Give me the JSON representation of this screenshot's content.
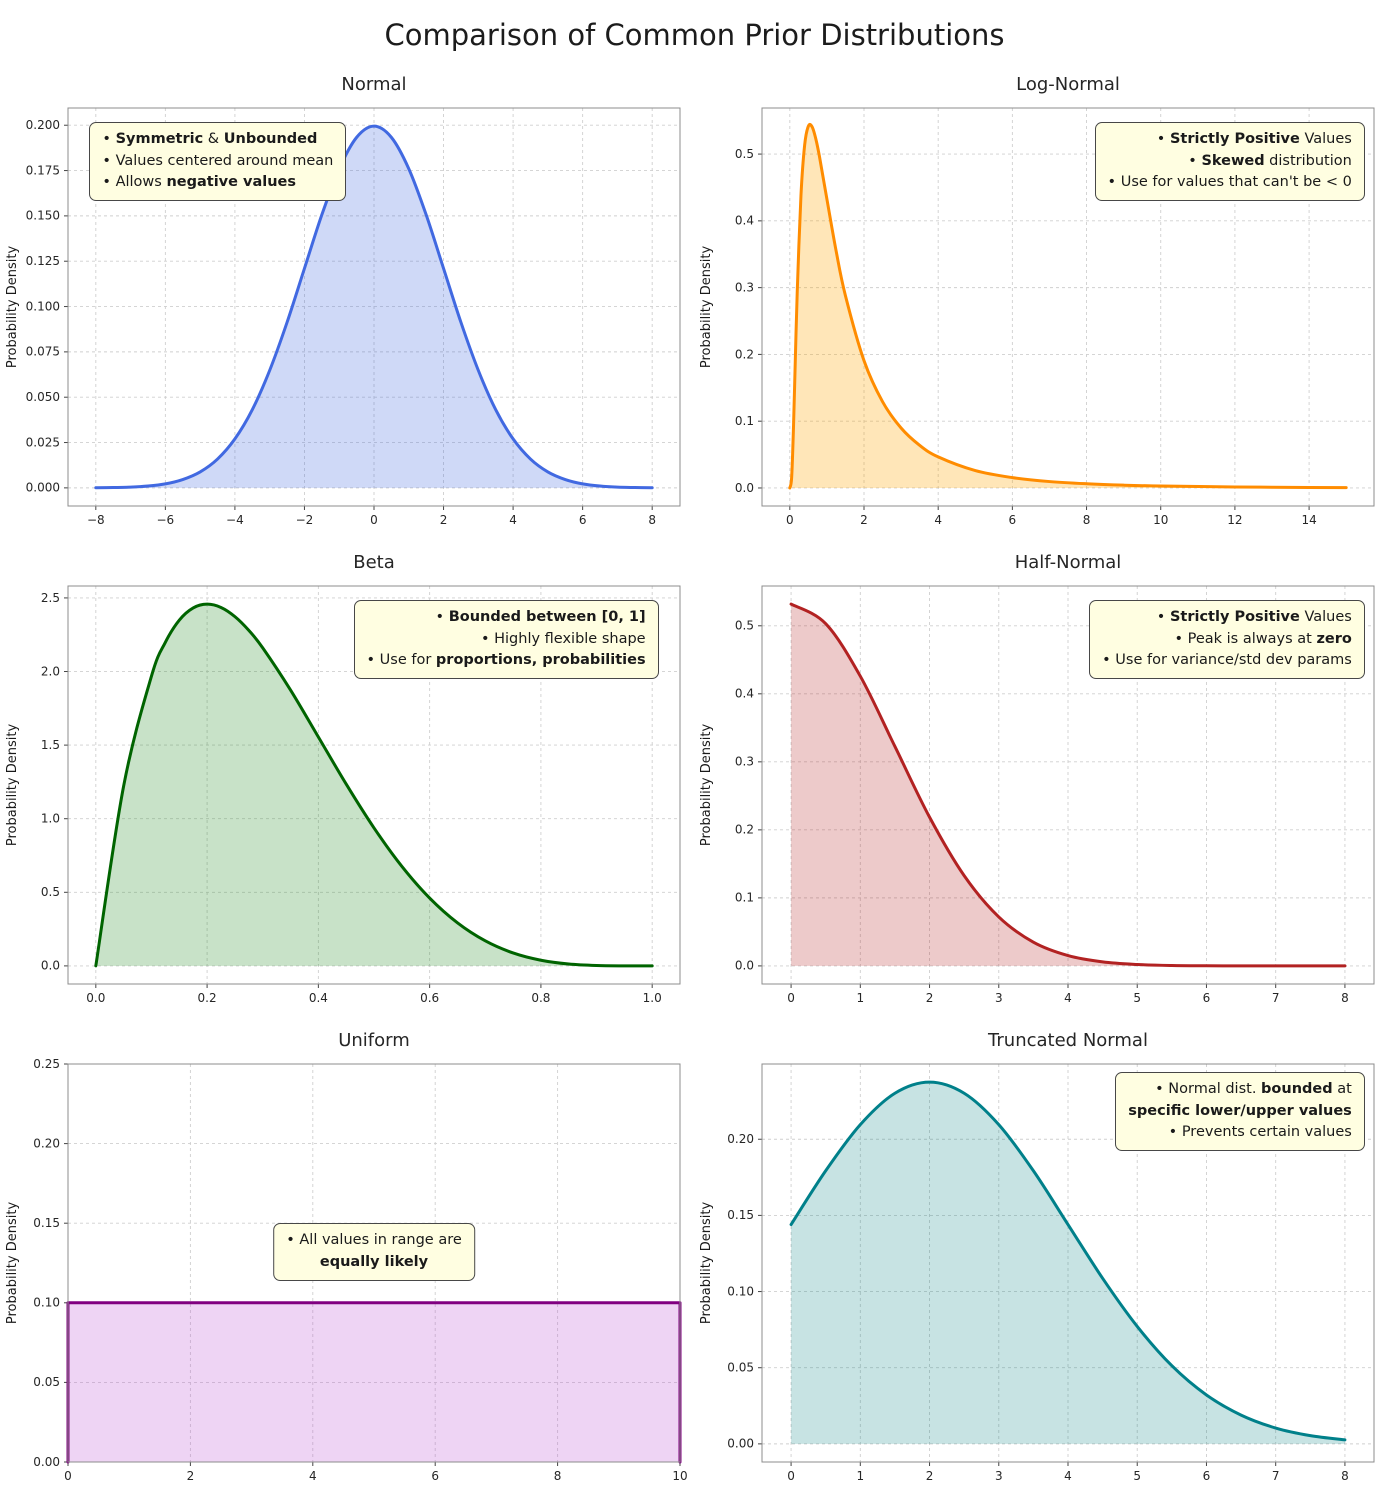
{
  "page": {
    "title": "Comparison of Common Prior Distributions"
  },
  "chart_data": [
    {
      "id": "normal",
      "type": "area",
      "title": "Normal",
      "ylabel": "Probability Density",
      "color": "#4169e1",
      "fill": "rgba(65,105,225,0.25)",
      "smooth": true,
      "xlim": [
        -8.8,
        8.8
      ],
      "ylim": [
        -0.01,
        0.2095
      ],
      "xticks": {
        "values": [
          -8,
          -6,
          -4,
          -2,
          0,
          2,
          4,
          6,
          8
        ],
        "labels": [
          "−8",
          "−6",
          "−4",
          "−2",
          "0",
          "2",
          "4",
          "6",
          "8"
        ]
      },
      "yticks": {
        "values": [
          0,
          0.025,
          0.05,
          0.075,
          0.1,
          0.125,
          0.15,
          0.175,
          0.2
        ],
        "labels": [
          "0.000",
          "0.025",
          "0.050",
          "0.075",
          "0.100",
          "0.125",
          "0.150",
          "0.175",
          "0.200"
        ]
      },
      "x": [
        -8,
        -7.5,
        -7,
        -6.5,
        -6,
        -5.5,
        -5,
        -4.5,
        -4,
        -3.5,
        -3,
        -2.5,
        -2,
        -1.5,
        -1,
        -0.5,
        0,
        0.5,
        1,
        1.5,
        2,
        2.5,
        3,
        3.5,
        4,
        4.5,
        5,
        5.5,
        6,
        6.5,
        7,
        7.5,
        8
      ],
      "y": [
        0.0001,
        0.0002,
        0.0004,
        0.001,
        0.0022,
        0.0046,
        0.0088,
        0.0159,
        0.027,
        0.0431,
        0.0648,
        0.0913,
        0.121,
        0.1506,
        0.176,
        0.1933,
        0.1995,
        0.1933,
        0.176,
        0.1506,
        0.121,
        0.0913,
        0.0648,
        0.0431,
        0.027,
        0.0159,
        0.0088,
        0.0046,
        0.0022,
        0.001,
        0.0004,
        0.0002,
        0.0001
      ],
      "annotation": {
        "anchor": "left",
        "align": "left",
        "ax": 0.035,
        "ay": 0.035,
        "lines": [
          "• **Symmetric** & **Unbounded**",
          "• Values centered around mean",
          "• Allows **negative values**"
        ]
      }
    },
    {
      "id": "lognormal",
      "type": "area",
      "title": "Log-Normal",
      "ylabel": "Probability Density",
      "color": "#ff8c00",
      "fill": "rgba(255,165,0,0.28)",
      "smooth": true,
      "xlim": [
        -0.75,
        15.75
      ],
      "ylim": [
        -0.027,
        0.569
      ],
      "xticks": {
        "values": [
          0,
          2,
          4,
          6,
          8,
          10,
          12,
          14
        ],
        "labels": [
          "0",
          "2",
          "4",
          "6",
          "8",
          "10",
          "12",
          "14"
        ]
      },
      "yticks": {
        "values": [
          0,
          0.1,
          0.2,
          0.3,
          0.4,
          0.5
        ],
        "labels": [
          "0.0",
          "0.1",
          "0.2",
          "0.3",
          "0.4",
          "0.5"
        ]
      },
      "x": [
        0,
        0.05,
        0.1,
        0.15,
        0.2,
        0.3,
        0.4,
        0.5,
        0.6,
        0.7,
        0.8,
        1,
        1.25,
        1.5,
        2,
        2.5,
        3,
        3.5,
        4,
        5,
        6,
        7,
        8,
        9,
        10,
        12,
        14,
        15
      ],
      "y": [
        0,
        0.0162,
        0.0929,
        0.1956,
        0.2937,
        0.4376,
        0.5135,
        0.5418,
        0.5409,
        0.523,
        0.4961,
        0.4325,
        0.3545,
        0.2879,
        0.1907,
        0.1292,
        0.0898,
        0.0639,
        0.0465,
        0.026,
        0.0155,
        0.0096,
        0.0063,
        0.0042,
        0.0029,
        0.0015,
        0.0008,
        0.0006
      ],
      "annotation": {
        "anchor": "right",
        "align": "right",
        "ax": 0.985,
        "ay": 0.035,
        "lines": [
          "• **Strictly Positive** Values",
          "• **Skewed** distribution",
          "• Use for values that can't be < 0"
        ]
      }
    },
    {
      "id": "beta",
      "type": "area",
      "title": "Beta",
      "ylabel": "Probability Density",
      "color": "#006400",
      "fill": "rgba(34,139,34,0.25)",
      "smooth": true,
      "xlim": [
        -0.05,
        1.05
      ],
      "ylim": [
        -0.123,
        2.581
      ],
      "xticks": {
        "values": [
          0,
          0.2,
          0.4,
          0.6,
          0.8,
          1
        ],
        "labels": [
          "0.0",
          "0.2",
          "0.4",
          "0.6",
          "0.8",
          "1.0"
        ]
      },
      "yticks": {
        "values": [
          0,
          0.5,
          1,
          1.5,
          2,
          2.5
        ],
        "labels": [
          "0.0",
          "0.5",
          "1.0",
          "1.5",
          "2.0",
          "2.5"
        ]
      },
      "x": [
        0,
        0.05,
        0.1,
        0.125,
        0.15,
        0.175,
        0.2,
        0.225,
        0.25,
        0.275,
        0.3,
        0.35,
        0.4,
        0.45,
        0.5,
        0.55,
        0.6,
        0.65,
        0.7,
        0.75,
        0.8,
        0.85,
        0.9,
        0.95,
        1
      ],
      "y": [
        0,
        1.2218,
        1.9683,
        2.1982,
        2.349,
        2.4321,
        2.4576,
        2.4352,
        2.373,
        2.2794,
        2.1609,
        1.8743,
        1.5552,
        1.2353,
        0.9375,
        0.6766,
        0.4608,
        0.2926,
        0.1701,
        0.0879,
        0.0384,
        0.0129,
        0.0027,
        0.0002,
        0
      ],
      "annotation": {
        "anchor": "right",
        "align": "right",
        "ax": 0.965,
        "ay": 0.035,
        "lines": [
          "• **Bounded between [0, 1]**",
          "• Highly flexible shape",
          "• Use for **proportions, probabilities**"
        ]
      }
    },
    {
      "id": "halfnormal",
      "type": "area",
      "title": "Half-Normal",
      "ylabel": "Probability Density",
      "color": "#b22222",
      "fill": "rgba(178,34,34,0.24)",
      "smooth": true,
      "xlim": [
        -0.42,
        8.42
      ],
      "ylim": [
        -0.0266,
        0.5585
      ],
      "xticks": {
        "values": [
          0,
          1,
          2,
          3,
          4,
          5,
          6,
          7,
          8
        ],
        "labels": [
          "0",
          "1",
          "2",
          "3",
          "4",
          "5",
          "6",
          "7",
          "8"
        ]
      },
      "yticks": {
        "values": [
          0,
          0.1,
          0.2,
          0.3,
          0.4,
          0.5
        ],
        "labels": [
          "0.0",
          "0.1",
          "0.2",
          "0.3",
          "0.4",
          "0.5"
        ]
      },
      "x": [
        0,
        0.5,
        1,
        1.5,
        2,
        2.5,
        3,
        3.5,
        4,
        4.5,
        5,
        5.5,
        6,
        6.5,
        7,
        7.5,
        8
      ],
      "y": [
        0.5319,
        0.5031,
        0.4259,
        0.3226,
        0.2187,
        0.1327,
        0.072,
        0.0349,
        0.0152,
        0.0059,
        0.0021,
        0.0006,
        0.0002,
        0.0001,
        0,
        0,
        0
      ],
      "annotation": {
        "anchor": "right",
        "align": "right",
        "ax": 0.985,
        "ay": 0.035,
        "lines": [
          "• **Strictly Positive** Values",
          "• Peak is always at **zero**",
          "• Use for variance/std dev params"
        ]
      }
    },
    {
      "id": "uniform",
      "type": "area",
      "title": "Uniform",
      "ylabel": "Probability Density",
      "color": "#800080",
      "fill": "rgba(186,85,211,0.25)",
      "smooth": false,
      "xlim": [
        0,
        10
      ],
      "ylim": [
        0,
        0.25
      ],
      "xticks": {
        "values": [
          0,
          2,
          4,
          6,
          8,
          10
        ],
        "labels": [
          "0",
          "2",
          "4",
          "6",
          "8",
          "10"
        ]
      },
      "yticks": {
        "values": [
          0,
          0.05,
          0.1,
          0.15,
          0.2,
          0.25
        ],
        "labels": [
          "0.00",
          "0.05",
          "0.10",
          "0.15",
          "0.20",
          "0.25"
        ]
      },
      "x": [
        0,
        0,
        10,
        10
      ],
      "y": [
        0,
        0.1,
        0.1,
        0
      ],
      "annotation": {
        "anchor": "center",
        "align": "center",
        "ax": 0.5,
        "ay": 0.4,
        "lines": [
          "• All values in range are",
          "**equally likely**"
        ]
      }
    },
    {
      "id": "truncnormal",
      "type": "area",
      "title": "Truncated Normal",
      "ylabel": "Probability Density",
      "color": "#00808a",
      "fill": "rgba(0,128,128,0.22)",
      "smooth": true,
      "xlim": [
        -0.42,
        8.42
      ],
      "ylim": [
        -0.0119,
        0.2494
      ],
      "xticks": {
        "values": [
          0,
          1,
          2,
          3,
          4,
          5,
          6,
          7,
          8
        ],
        "labels": [
          "0",
          "1",
          "2",
          "3",
          "4",
          "5",
          "6",
          "7",
          "8"
        ]
      },
      "yticks": {
        "values": [
          0,
          0.05,
          0.1,
          0.15,
          0.2
        ],
        "labels": [
          "0.00",
          "0.05",
          "0.10",
          "0.15",
          "0.20"
        ]
      },
      "x": [
        0,
        0.5,
        1,
        1.5,
        2,
        2.5,
        3,
        3.5,
        4,
        4.5,
        5,
        5.5,
        6,
        6.5,
        7,
        7.5,
        8
      ],
      "y": [
        0.144,
        0.1793,
        0.2096,
        0.2302,
        0.2375,
        0.2302,
        0.2096,
        0.1793,
        0.144,
        0.1087,
        0.0771,
        0.0513,
        0.0321,
        0.0189,
        0.0104,
        0.0054,
        0.0026
      ],
      "annotation": {
        "anchor": "right",
        "align": "right",
        "ax": 0.985,
        "ay": 0.02,
        "lines": [
          "• Normal dist. **bounded** at",
          "**specific lower/upper values**",
          "• Prevents certain values"
        ]
      }
    }
  ]
}
